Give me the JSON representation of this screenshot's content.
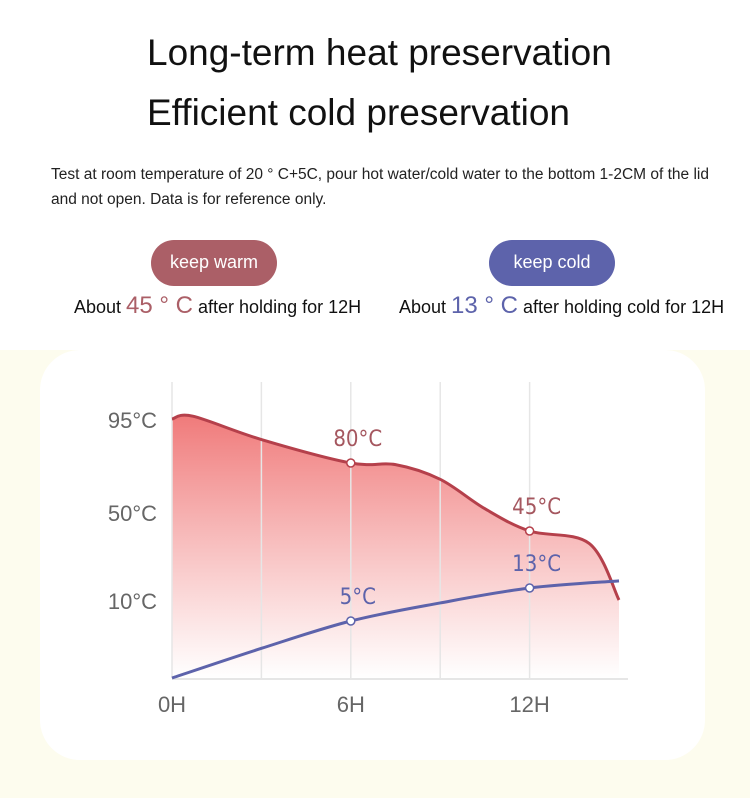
{
  "header": {
    "title_line1": "Long-term heat preservation",
    "title_line2": "Efficient cold preservation",
    "description": "Test at room temperature of 20 ° C+5C, pour hot water/cold water to the bottom 1-2CM of the lid and not open. Data is for reference only."
  },
  "warm": {
    "label": "keep warm",
    "prefix": "About ",
    "value": "45 ° C",
    "suffix": " after holding for 12H",
    "color": "#ab5f67"
  },
  "cold": {
    "label": "keep cold",
    "prefix": "About ",
    "value": "13 ° C",
    "suffix": " after holding cold for 12H",
    "color": "#5d63ab"
  },
  "chart_data": {
    "type": "area",
    "x_ticks": [
      "0H",
      "6H",
      "12H"
    ],
    "y_ticks": [
      "95°C",
      "50°C",
      "10°C"
    ],
    "grid": "vertical",
    "series": [
      {
        "points": [
          [
            0,
            95
          ],
          [
            0.7,
            96
          ],
          [
            3,
            88
          ],
          [
            6,
            80
          ],
          [
            7.5,
            79
          ],
          [
            9,
            70
          ],
          [
            10.5,
            52
          ],
          [
            12,
            45
          ],
          [
            14,
            38
          ],
          [
            15,
            10
          ]
        ],
        "color": "#b5404b",
        "fill": "#f07a7a",
        "labels": [
          {
            "x": 6,
            "y": 80,
            "text": "80°C"
          },
          {
            "x": 12,
            "y": 45,
            "text": "45°C"
          }
        ]
      },
      {
        "points": [
          [
            0,
            0
          ],
          [
            3,
            2.6
          ],
          [
            6,
            5
          ],
          [
            9,
            9.3
          ],
          [
            12,
            13
          ],
          [
            15,
            17
          ]
        ],
        "color": "#5d63ab",
        "labels": [
          {
            "x": 6,
            "y": 5,
            "text": "5°C"
          },
          {
            "x": 12,
            "y": 13,
            "text": "13°C"
          }
        ]
      }
    ]
  }
}
